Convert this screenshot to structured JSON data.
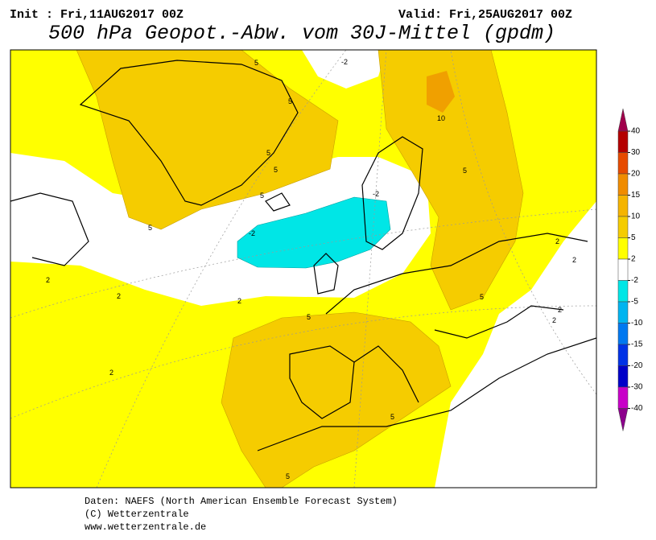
{
  "header": {
    "init": "Init : Fri,11AUG2017 00Z",
    "valid": "Valid: Fri,25AUG2017 00Z",
    "title": "500 hPa Geopot.-Abw. vom 30J-Mittel (gpdm)"
  },
  "colorbar": {
    "ticks": [
      40,
      30,
      20,
      15,
      10,
      5,
      2,
      -2,
      -5,
      -10,
      -15,
      -20,
      -30,
      -40
    ],
    "colors": [
      "#a0004b",
      "#b40000",
      "#e64b00",
      "#f08c00",
      "#f5b400",
      "#f5cc00",
      "#ffff00",
      "#ffffff",
      "#00e6e6",
      "#00b4f0",
      "#0078f0",
      "#0032e6",
      "#0000c8",
      "#c800c8",
      "#8c008c"
    ]
  },
  "contour_labels": [
    5,
    -2,
    5,
    5,
    5,
    5,
    5,
    10,
    5,
    -2,
    -2,
    2,
    2,
    2,
    2,
    5,
    5,
    5,
    5,
    2,
    2,
    2,
    2
  ],
  "footer": [
    "Daten: NAEFS (North American Ensemble Forecast System)",
    "(C) Wetterzentrale",
    "www.wetterzentrale.de"
  ]
}
